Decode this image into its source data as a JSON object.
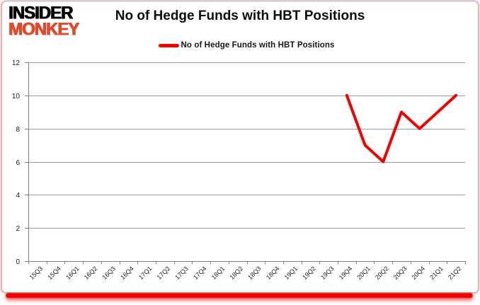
{
  "logo": {
    "line1": "INSIDER",
    "line2": "MONKEY",
    "line2_color": "#dd4a2c"
  },
  "header": {
    "title": "No of Hedge Funds with HBT Positions"
  },
  "legend": {
    "label": "No of Hedge Funds with HBT Positions"
  },
  "colors": {
    "line": "#f20000",
    "grid": "#9b9b9b",
    "axis": "#7f7f7f",
    "tick_text": "#1a1a1a",
    "bottom_bar": "#f30000",
    "bottom_bar_glow": "rgba(243,30,30,0.8)"
  },
  "chart_data": {
    "type": "line",
    "title": "No of Hedge Funds with HBT Positions",
    "categories": [
      "15Q3",
      "15Q4",
      "16Q1",
      "16Q2",
      "16Q3",
      "16Q4",
      "17Q1",
      "17Q2",
      "17Q3",
      "17Q4",
      "18Q1",
      "18Q2",
      "18Q3",
      "18Q4",
      "19Q1",
      "19Q2",
      "19Q3",
      "19Q4",
      "20Q1",
      "20Q2",
      "20Q3",
      "20Q4",
      "21Q1",
      "21Q2"
    ],
    "series": [
      {
        "name": "No of Hedge Funds with HBT Positions",
        "values": [
          null,
          null,
          null,
          null,
          null,
          null,
          null,
          null,
          null,
          null,
          null,
          null,
          null,
          null,
          null,
          null,
          null,
          10,
          7,
          6,
          9,
          8,
          9,
          10
        ]
      }
    ],
    "xlabel": "",
    "ylabel": "",
    "ylim": [
      0,
      12
    ],
    "ytick_interval": 2,
    "grid": "horizontal",
    "legend_position": "top-center"
  }
}
